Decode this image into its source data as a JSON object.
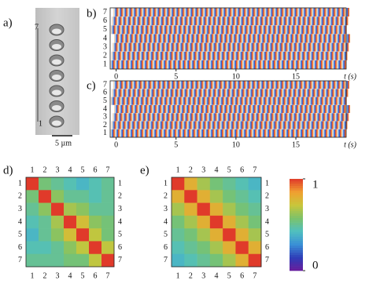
{
  "panel_a": {
    "label": "a)",
    "marks": [
      "7",
      "1"
    ],
    "scale_bar": "5 µm"
  },
  "chart_data": [
    {
      "type": "kymograph",
      "label": "b)",
      "rows": [
        "1",
        "2",
        "3",
        "4",
        "5",
        "6",
        "7"
      ],
      "xlim": [
        -0.5,
        19.2
      ],
      "xticks": [
        0,
        5,
        10,
        15
      ],
      "x_label": "t (s)"
    },
    {
      "type": "kymograph",
      "label": "c)",
      "rows": [
        "1",
        "2",
        "3",
        "4",
        "5",
        "6",
        "7"
      ],
      "xlim": [
        -0.5,
        19.2
      ],
      "xticks": [
        0,
        5,
        10,
        15
      ],
      "x_label": "t (s)"
    },
    {
      "type": "heatmap",
      "label": "d)",
      "categories": [
        "1",
        "2",
        "3",
        "4",
        "5",
        "6",
        "7"
      ],
      "zlim": [
        0,
        1
      ],
      "values": [
        [
          1,
          0.55,
          0.5,
          0.45,
          0.4,
          0.45,
          0.5
        ],
        [
          0.55,
          1,
          0.6,
          0.5,
          0.5,
          0.45,
          0.5
        ],
        [
          0.5,
          0.6,
          1,
          0.65,
          0.6,
          0.5,
          0.5
        ],
        [
          0.45,
          0.5,
          0.65,
          1,
          0.75,
          0.6,
          0.55
        ],
        [
          0.4,
          0.5,
          0.6,
          0.75,
          1,
          0.7,
          0.55
        ],
        [
          0.45,
          0.45,
          0.5,
          0.6,
          0.7,
          1,
          0.7
        ],
        [
          0.5,
          0.5,
          0.5,
          0.55,
          0.55,
          0.7,
          1
        ]
      ]
    },
    {
      "type": "heatmap",
      "label": "e)",
      "categories": [
        "1",
        "2",
        "3",
        "4",
        "5",
        "6",
        "7"
      ],
      "zlim": [
        0,
        1
      ],
      "values": [
        [
          1,
          0.8,
          0.65,
          0.55,
          0.5,
          0.45,
          0.4
        ],
        [
          0.8,
          1,
          0.8,
          0.65,
          0.55,
          0.5,
          0.45
        ],
        [
          0.65,
          0.8,
          1,
          0.8,
          0.65,
          0.55,
          0.5
        ],
        [
          0.55,
          0.65,
          0.8,
          1,
          0.8,
          0.65,
          0.55
        ],
        [
          0.5,
          0.55,
          0.65,
          0.8,
          1,
          0.8,
          0.65
        ],
        [
          0.45,
          0.5,
          0.55,
          0.65,
          0.8,
          1,
          0.8
        ],
        [
          0.4,
          0.45,
          0.5,
          0.55,
          0.65,
          0.8,
          1
        ]
      ]
    },
    {
      "type": "colorbar",
      "zlim": [
        0,
        1
      ],
      "ticks": [
        0,
        1
      ],
      "colorscale": [
        "#6a1b9a",
        "#2e3db8",
        "#3a8fd6",
        "#4fc0c0",
        "#7cc26a",
        "#c8c63a",
        "#f0a030",
        "#e03a2a"
      ]
    }
  ]
}
